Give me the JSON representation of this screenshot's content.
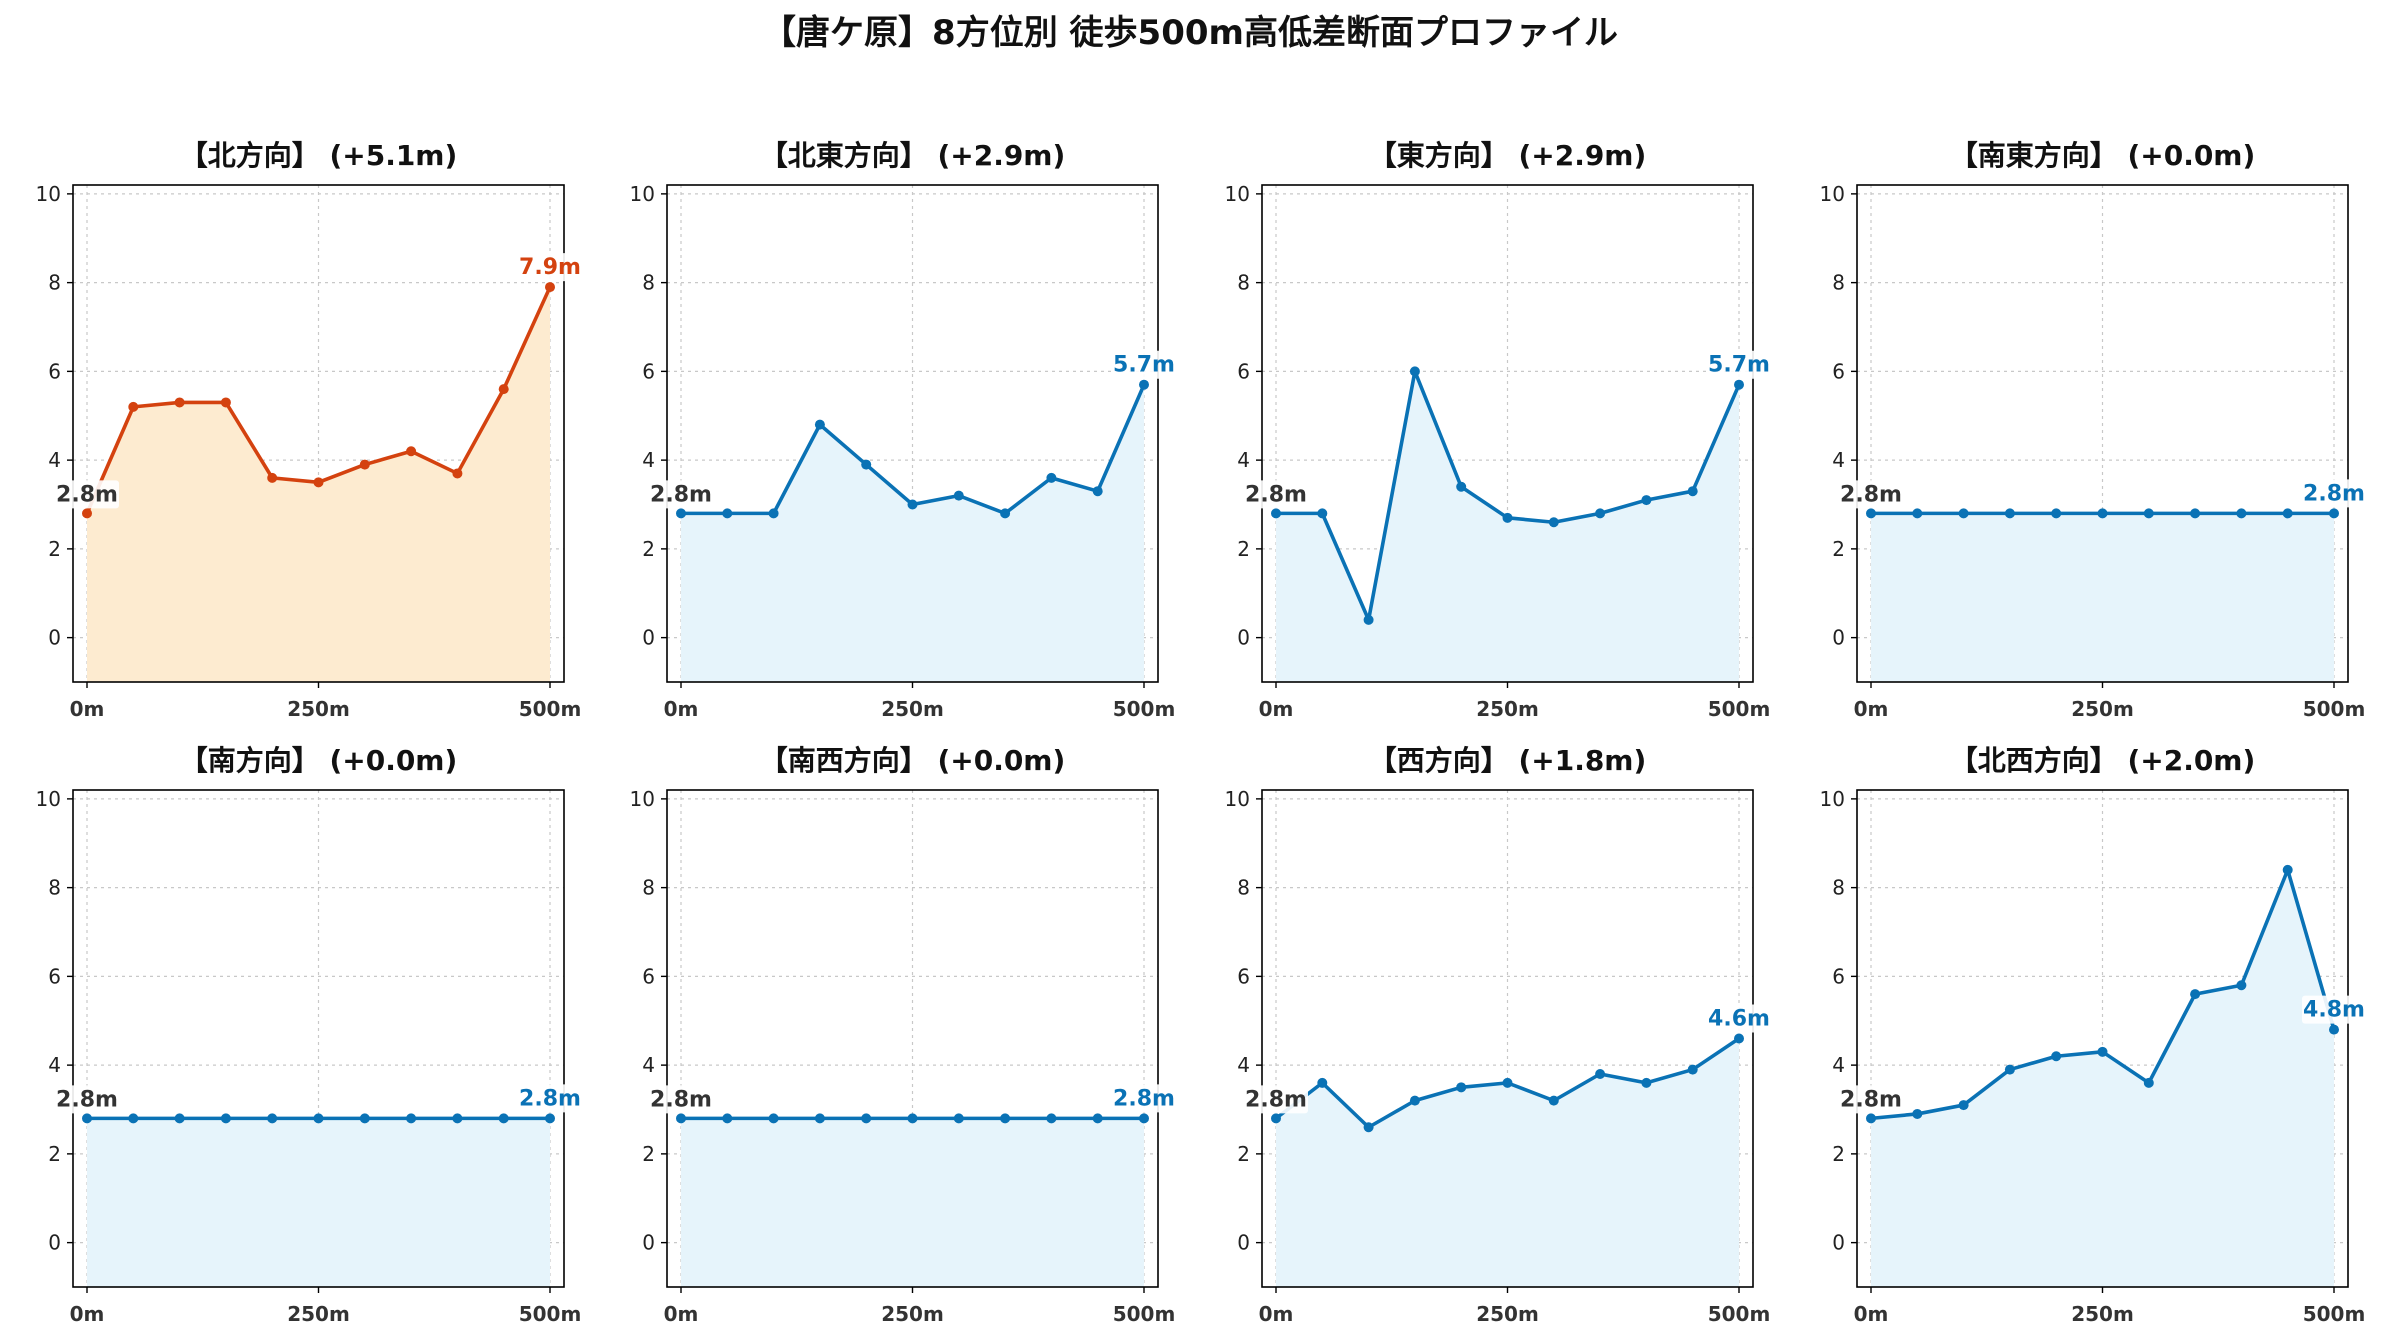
{
  "figure": {
    "title": "【唐ケ原】8方位別 徒歩500m高低差断面プロファイル"
  },
  "colors": {
    "highlight_line": "#d4420f",
    "highlight_fill": "#fdebd0",
    "normal_line": "#0a72b5",
    "normal_fill": "#e6f4fb",
    "start_label": "#333333"
  },
  "chart_data": [
    {
      "type": "area",
      "title": "【北方向】 (+5.1m)",
      "highlight": true,
      "x": [
        0,
        50,
        100,
        150,
        200,
        250,
        300,
        350,
        400,
        450,
        500
      ],
      "xticks": [
        0,
        250,
        500
      ],
      "xtick_labels": [
        "0m",
        "250m",
        "500m"
      ],
      "y": [
        2.8,
        5.2,
        5.3,
        5.3,
        3.6,
        3.5,
        3.9,
        4.2,
        3.7,
        5.6,
        7.9
      ],
      "yticks": [
        0,
        2,
        4,
        6,
        8,
        10
      ],
      "ylim": [
        -1,
        10.2
      ],
      "grid": true,
      "start_label": "2.8m",
      "end_label": "7.9m"
    },
    {
      "type": "area",
      "title": "【北東方向】 (+2.9m)",
      "highlight": false,
      "x": [
        0,
        50,
        100,
        150,
        200,
        250,
        300,
        350,
        400,
        450,
        500
      ],
      "xticks": [
        0,
        250,
        500
      ],
      "xtick_labels": [
        "0m",
        "250m",
        "500m"
      ],
      "y": [
        2.8,
        2.8,
        2.8,
        4.8,
        3.9,
        3.0,
        3.2,
        2.8,
        3.6,
        3.3,
        5.7
      ],
      "yticks": [
        0,
        2,
        4,
        6,
        8,
        10
      ],
      "ylim": [
        -1,
        10.2
      ],
      "grid": true,
      "start_label": "2.8m",
      "end_label": "5.7m"
    },
    {
      "type": "area",
      "title": "【東方向】 (+2.9m)",
      "highlight": false,
      "x": [
        0,
        50,
        100,
        150,
        200,
        250,
        300,
        350,
        400,
        450,
        500
      ],
      "xticks": [
        0,
        250,
        500
      ],
      "xtick_labels": [
        "0m",
        "250m",
        "500m"
      ],
      "y": [
        2.8,
        2.8,
        0.4,
        6.0,
        3.4,
        2.7,
        2.6,
        2.8,
        3.1,
        3.3,
        5.7
      ],
      "yticks": [
        0,
        2,
        4,
        6,
        8,
        10
      ],
      "ylim": [
        -1,
        10.2
      ],
      "grid": true,
      "start_label": "2.8m",
      "end_label": "5.7m"
    },
    {
      "type": "area",
      "title": "【南東方向】 (+0.0m)",
      "highlight": false,
      "x": [
        0,
        50,
        100,
        150,
        200,
        250,
        300,
        350,
        400,
        450,
        500
      ],
      "xticks": [
        0,
        250,
        500
      ],
      "xtick_labels": [
        "0m",
        "250m",
        "500m"
      ],
      "y": [
        2.8,
        2.8,
        2.8,
        2.8,
        2.8,
        2.8,
        2.8,
        2.8,
        2.8,
        2.8,
        2.8
      ],
      "yticks": [
        0,
        2,
        4,
        6,
        8,
        10
      ],
      "ylim": [
        -1,
        10.2
      ],
      "grid": true,
      "start_label": "2.8m",
      "end_label": "2.8m"
    },
    {
      "type": "area",
      "title": "【南方向】 (+0.0m)",
      "highlight": false,
      "x": [
        0,
        50,
        100,
        150,
        200,
        250,
        300,
        350,
        400,
        450,
        500
      ],
      "xticks": [
        0,
        250,
        500
      ],
      "xtick_labels": [
        "0m",
        "250m",
        "500m"
      ],
      "y": [
        2.8,
        2.8,
        2.8,
        2.8,
        2.8,
        2.8,
        2.8,
        2.8,
        2.8,
        2.8,
        2.8
      ],
      "yticks": [
        0,
        2,
        4,
        6,
        8,
        10
      ],
      "ylim": [
        -1,
        10.2
      ],
      "grid": true,
      "start_label": "2.8m",
      "end_label": "2.8m"
    },
    {
      "type": "area",
      "title": "【南西方向】 (+0.0m)",
      "highlight": false,
      "x": [
        0,
        50,
        100,
        150,
        200,
        250,
        300,
        350,
        400,
        450,
        500
      ],
      "xticks": [
        0,
        250,
        500
      ],
      "xtick_labels": [
        "0m",
        "250m",
        "500m"
      ],
      "y": [
        2.8,
        2.8,
        2.8,
        2.8,
        2.8,
        2.8,
        2.8,
        2.8,
        2.8,
        2.8,
        2.8
      ],
      "yticks": [
        0,
        2,
        4,
        6,
        8,
        10
      ],
      "ylim": [
        -1,
        10.2
      ],
      "grid": true,
      "start_label": "2.8m",
      "end_label": "2.8m"
    },
    {
      "type": "area",
      "title": "【西方向】 (+1.8m)",
      "highlight": false,
      "x": [
        0,
        50,
        100,
        150,
        200,
        250,
        300,
        350,
        400,
        450,
        500
      ],
      "xticks": [
        0,
        250,
        500
      ],
      "xtick_labels": [
        "0m",
        "250m",
        "500m"
      ],
      "y": [
        2.8,
        3.6,
        2.6,
        3.2,
        3.5,
        3.6,
        3.2,
        3.8,
        3.6,
        3.9,
        4.6
      ],
      "yticks": [
        0,
        2,
        4,
        6,
        8,
        10
      ],
      "ylim": [
        -1,
        10.2
      ],
      "grid": true,
      "start_label": "2.8m",
      "end_label": "4.6m"
    },
    {
      "type": "area",
      "title": "【北西方向】 (+2.0m)",
      "highlight": false,
      "x": [
        0,
        50,
        100,
        150,
        200,
        250,
        300,
        350,
        400,
        450,
        500
      ],
      "xticks": [
        0,
        250,
        500
      ],
      "xtick_labels": [
        "0m",
        "250m",
        "500m"
      ],
      "y": [
        2.8,
        2.9,
        3.1,
        3.9,
        4.2,
        4.3,
        3.6,
        5.6,
        5.8,
        8.4,
        4.8
      ],
      "yticks": [
        0,
        2,
        4,
        6,
        8,
        10
      ],
      "ylim": [
        -1,
        10.2
      ],
      "grid": true,
      "start_label": "2.8m",
      "end_label": "4.8m"
    }
  ]
}
